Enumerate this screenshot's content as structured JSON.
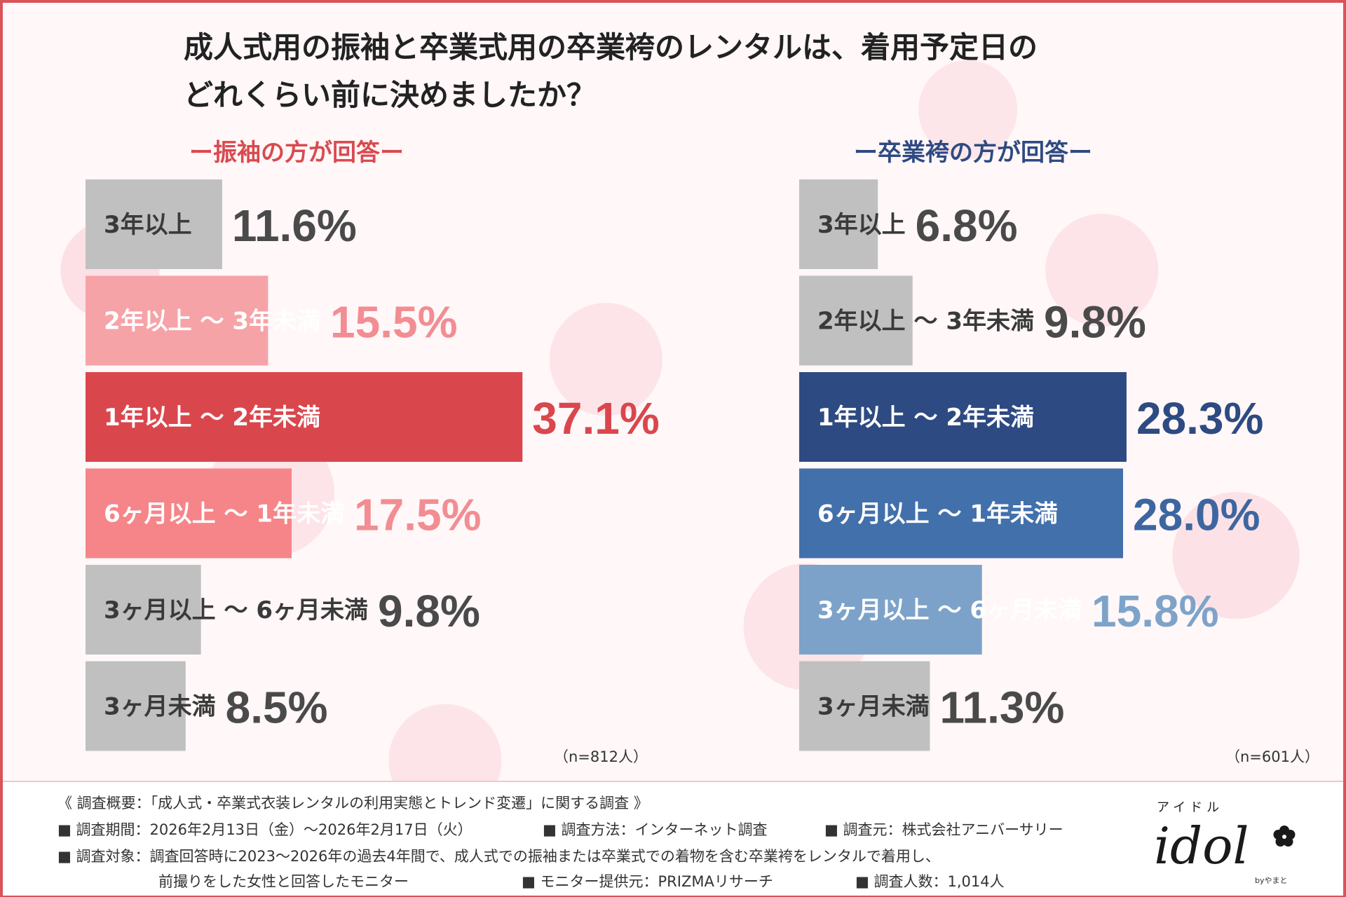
{
  "title": {
    "line1": "成人式用の振袖と卒業式用の卒業袴のレンタルは、着用予定日の",
    "line2": "どれくらい前に決めましたか？"
  },
  "chart_data": [
    {
      "type": "bar",
      "orientation": "horizontal",
      "title": "ー振袖の方が回答ー",
      "categories": [
        "3年以上",
        "2年以上 ～ 3年未満",
        "1年以上 ～ 2年未満",
        "6ヶ月以上 ～ 1年未満",
        "3ヶ月以上 ～ 6ヶ月未満",
        "3ヶ月未満"
      ],
      "values": [
        11.6,
        15.5,
        37.1,
        17.5,
        9.8,
        8.5
      ],
      "value_labels": [
        "11.6%",
        "15.5%",
        "37.1%",
        "17.5%",
        "9.8%",
        "8.5%"
      ],
      "colors": [
        "#c0c0c0",
        "#f6a3a8",
        "#d9474d",
        "#f58589",
        "#c0c0c0",
        "#c0c0c0"
      ],
      "value_colors": [
        "#4a4a4a",
        "#f28d93",
        "#d9474d",
        "#f28d93",
        "#4a4a4a",
        "#4a4a4a"
      ],
      "sample": "（n=812人）"
    },
    {
      "type": "bar",
      "orientation": "horizontal",
      "title": "ー卒業袴の方が回答ー",
      "categories": [
        "3年以上",
        "2年以上 ～ 3年未満",
        "1年以上 ～ 2年未満",
        "6ヶ月以上 ～ 1年未満",
        "3ヶ月以上 ～ 6ヶ月未満",
        "3ヶ月未満"
      ],
      "values": [
        6.8,
        9.8,
        28.3,
        28.0,
        15.8,
        11.3
      ],
      "value_labels": [
        "6.8%",
        "9.8%",
        "28.3%",
        "28.0%",
        "15.8%",
        "11.3%"
      ],
      "colors": [
        "#c0c0c0",
        "#c0c0c0",
        "#2e4a82",
        "#4270ab",
        "#7da2c9",
        "#c0c0c0"
      ],
      "value_colors": [
        "#4a4a4a",
        "#4a4a4a",
        "#2e4a82",
        "#3d66a1",
        "#7ea3c9",
        "#4a4a4a"
      ],
      "sample": "（n=601人）"
    }
  ],
  "footer": {
    "summary": "《 調査概要：「成人式・卒業式衣装レンタルの利用実態とトレンド変遷」に関する調査 》",
    "period": "■ 調査期間：2026年2月13日（金）～2026年2月17日（火）",
    "method": "■ 調査方法：インターネット調査",
    "source": "■ 調査元：株式会社アニバーサリー",
    "target1": "■ 調査対象：調査回答時に2023～2026年の過去4年間で、成人式での振袖または卒業式での着物を含む卒業袴をレンタルで着用し、",
    "target2": "前撮りをした女性と回答したモニター",
    "provider": "■ モニター提供元：PRIZMAリサーチ",
    "count": "■ 調査人数：1,014人"
  },
  "logo": {
    "kana": "アイドル",
    "word": "idol",
    "by": "byやまと"
  }
}
